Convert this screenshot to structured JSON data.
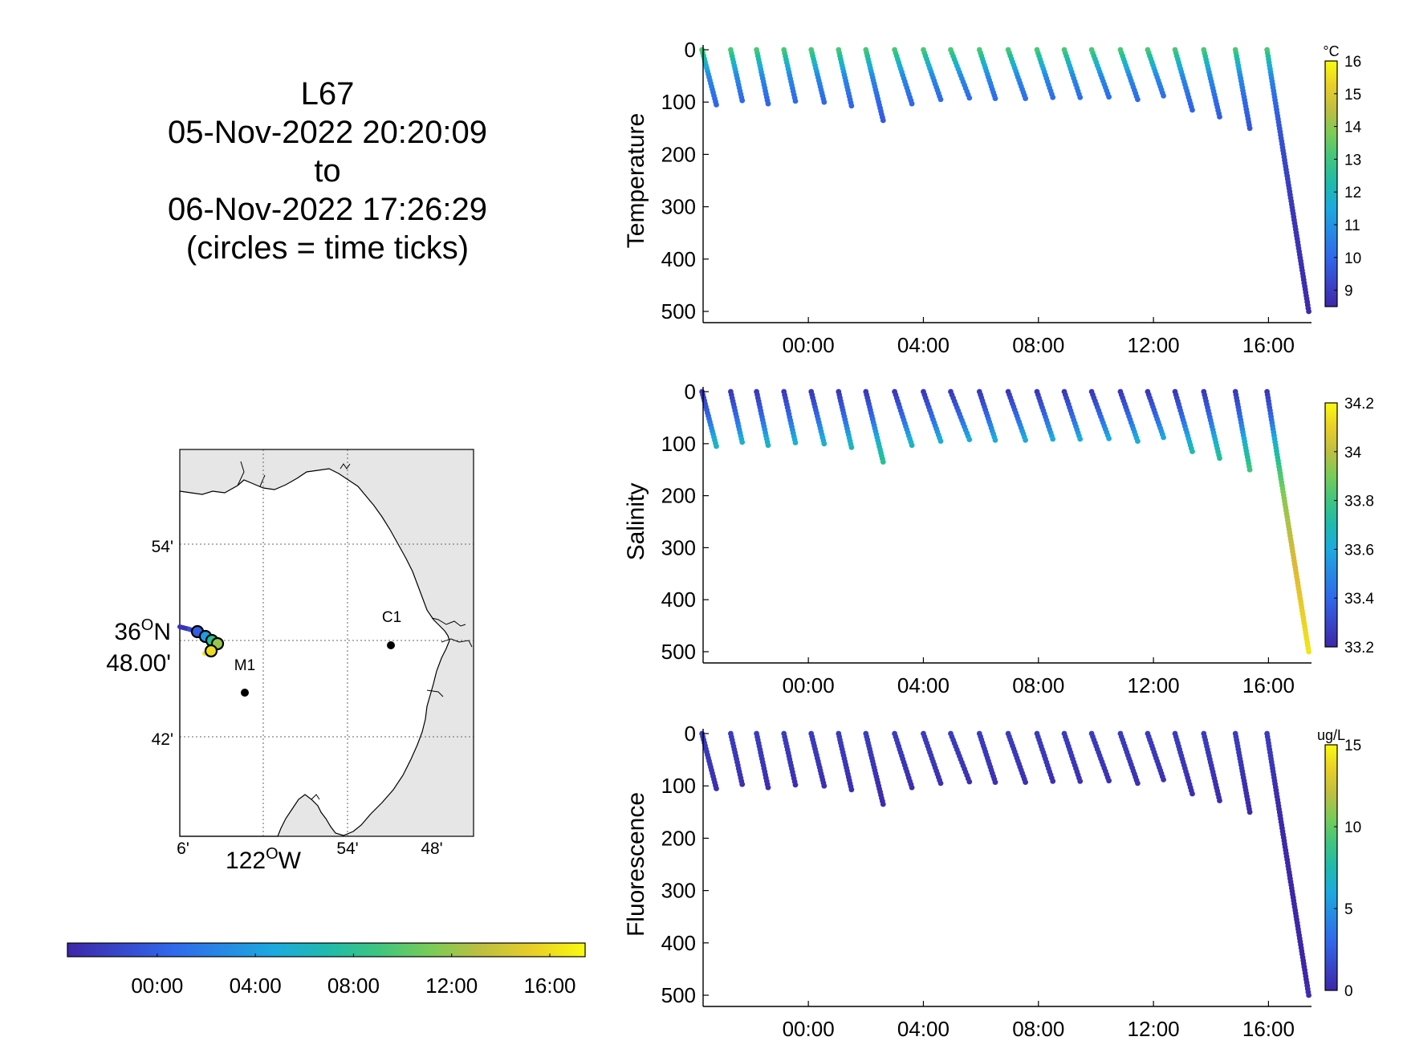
{
  "title_lines": [
    "L67",
    "05-Nov-2022 20:20:09",
    "to",
    "06-Nov-2022 17:26:29",
    "(circles = time ticks)"
  ],
  "time_ticks": [
    "00:00",
    "04:00",
    "08:00",
    "12:00",
    "16:00"
  ],
  "colors": {
    "colormap": "parula",
    "land": "#e6e6e6",
    "stations": "#000000"
  },
  "map": {
    "lat_ticks": [
      "54'",
      "42'"
    ],
    "lat_label_deg": "36",
    "lat_label_suffix": "N",
    "lat_label_min": "48.00'",
    "lon_ticks": [
      "6'",
      "54'",
      "48'"
    ],
    "lon_label_deg": "122",
    "lon_label_suffix": "W",
    "stations": [
      {
        "name": "C1",
        "lat": 36.797,
        "lon": -121.847
      },
      {
        "name": "M1",
        "lat": 36.747,
        "lon": -122.022
      }
    ],
    "track_circles_hours": [
      0,
      4,
      8,
      12,
      16
    ]
  },
  "time_colorbar": {
    "ticks": [
      "00:00",
      "04:00",
      "08:00",
      "12:00",
      "16:00"
    ],
    "range_hours": [
      -3.66,
      17.44
    ]
  },
  "chart_data": [
    {
      "type": "scatter",
      "ylabel": "Temperature",
      "unit": "°C",
      "x_unit": "hours relative to 06-Nov-2022 00:00",
      "xlim": [
        -3.66,
        17.44
      ],
      "ylim": [
        500,
        0
      ],
      "yticks": [
        "0",
        "100",
        "200",
        "300",
        "400",
        "500"
      ],
      "clim": [
        8.5,
        16
      ],
      "colorbar_ticks": [
        "16",
        "15",
        "14",
        "13",
        "12",
        "11",
        "10",
        "9"
      ],
      "profiles": [
        {
          "t0": -3.7,
          "t1": -3.2,
          "dmax": 105
        },
        {
          "t0": -2.7,
          "t1": -2.3,
          "dmax": 97
        },
        {
          "t0": -1.8,
          "t1": -1.4,
          "dmax": 103
        },
        {
          "t0": -0.85,
          "t1": -0.45,
          "dmax": 98
        },
        {
          "t0": 0.1,
          "t1": 0.55,
          "dmax": 100
        },
        {
          "t0": 1.05,
          "t1": 1.5,
          "dmax": 107
        },
        {
          "t0": 2.0,
          "t1": 2.6,
          "dmax": 135
        },
        {
          "t0": 3.0,
          "t1": 3.6,
          "dmax": 103
        },
        {
          "t0": 4.0,
          "t1": 4.6,
          "dmax": 95
        },
        {
          "t0": 4.95,
          "t1": 5.6,
          "dmax": 92
        },
        {
          "t0": 5.95,
          "t1": 6.5,
          "dmax": 93
        },
        {
          "t0": 6.95,
          "t1": 7.55,
          "dmax": 93
        },
        {
          "t0": 7.95,
          "t1": 8.5,
          "dmax": 91
        },
        {
          "t0": 8.9,
          "t1": 9.45,
          "dmax": 91
        },
        {
          "t0": 9.85,
          "t1": 10.45,
          "dmax": 90
        },
        {
          "t0": 10.85,
          "t1": 11.45,
          "dmax": 95
        },
        {
          "t0": 11.8,
          "t1": 12.35,
          "dmax": 88
        },
        {
          "t0": 12.75,
          "t1": 13.35,
          "dmax": 115
        },
        {
          "t0": 13.75,
          "t1": 14.3,
          "dmax": 128
        },
        {
          "t0": 14.85,
          "t1": 15.35,
          "dmax": 150
        },
        {
          "t0": 15.95,
          "t1": 17.4,
          "dmax": 500
        }
      ],
      "value_profile": {
        "surface": 13.2,
        "d50": 10.8,
        "d100": 10.0,
        "d150": 9.6,
        "d200": 9.3,
        "d300": 8.9,
        "d500": 8.6
      }
    },
    {
      "type": "scatter",
      "ylabel": "Salinity",
      "unit": "",
      "x_unit": "hours relative to 06-Nov-2022 00:00",
      "xlim": [
        -3.66,
        17.44
      ],
      "ylim": [
        500,
        0
      ],
      "yticks": [
        "0",
        "100",
        "200",
        "300",
        "400",
        "500"
      ],
      "clim": [
        33.2,
        34.2
      ],
      "colorbar_ticks": [
        "34.2",
        "34",
        "33.8",
        "33.6",
        "33.4",
        "33.2"
      ],
      "profiles": "same as Temperature",
      "value_profile": {
        "surface": 33.25,
        "d50": 33.4,
        "d100": 33.65,
        "d150": 33.8,
        "d200": 33.92,
        "d300": 34.02,
        "d500": 34.15
      }
    },
    {
      "type": "scatter",
      "ylabel": "Fluorescence",
      "unit": "ug/L",
      "x_unit": "hours relative to 06-Nov-2022 00:00",
      "xlim": [
        -3.66,
        17.44
      ],
      "ylim": [
        500,
        0
      ],
      "yticks": [
        "0",
        "100",
        "200",
        "300",
        "400",
        "500"
      ],
      "clim": [
        0,
        15
      ],
      "colorbar_ticks": [
        "15",
        "10",
        "5",
        "0"
      ],
      "profiles": "same as Temperature",
      "value_profile": {
        "surface": 1.0,
        "d50": 0.8,
        "d100": 0.4,
        "d150": 0.2,
        "d200": 0.1,
        "d300": 0.05,
        "d500": 0.0
      }
    }
  ]
}
